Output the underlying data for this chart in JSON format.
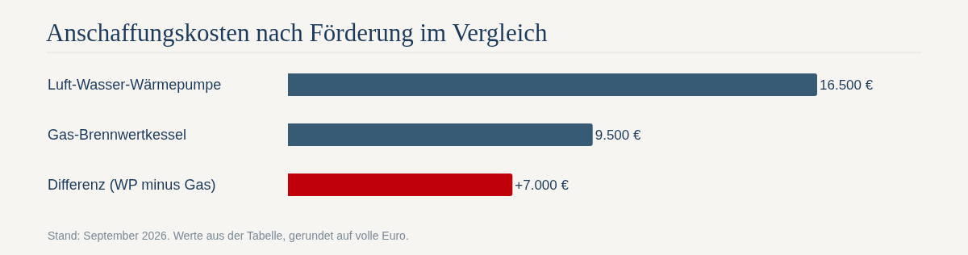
{
  "chart_data": {
    "type": "bar",
    "orientation": "horizontal",
    "title": "Anschaffungskosten nach Förderung im Vergleich",
    "categories": [
      "Luft-Wasser-Wärmepumpe",
      "Gas-Brennwertkessel",
      "Differenz (WP minus Gas)"
    ],
    "values": [
      16500,
      9500,
      7000
    ],
    "colors": [
      "#375a75",
      "#375a75",
      "#c0000b"
    ],
    "value_labels": [
      "16.500 €",
      "9.500 €",
      "+7.000 €"
    ],
    "annotations": [
      "Stand: September 2026. Werte aus der Tabelle, gerundet auf volle Euro."
    ]
  }
}
